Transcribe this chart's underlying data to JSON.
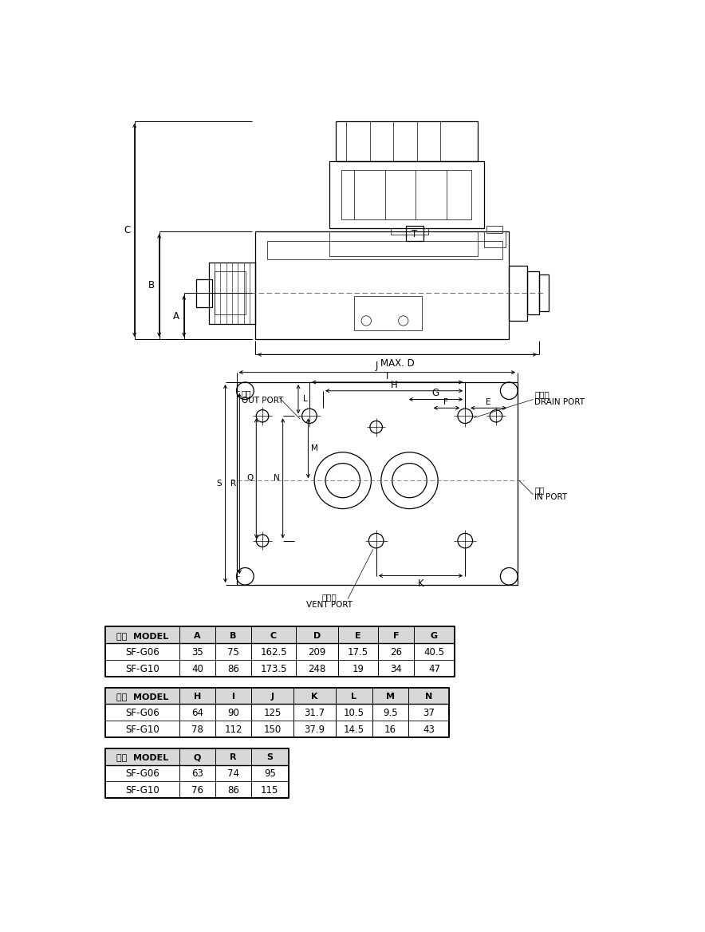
{
  "bg_color": "#ffffff",
  "line_color": "#000000",
  "table_header_bg": "#e0e0e0",
  "table_border": "#000000",
  "table1": {
    "headers": [
      "型式  MODEL",
      "A",
      "B",
      "C",
      "D",
      "E",
      "F",
      "G"
    ],
    "rows": [
      [
        "SF-G06",
        "35",
        "75",
        "162.5",
        "209",
        "17.5",
        "26",
        "40.5"
      ],
      [
        "SF-G10",
        "40",
        "86",
        "173.5",
        "248",
        "19",
        "34",
        "47"
      ]
    ]
  },
  "table2": {
    "headers": [
      "型式  MODEL",
      "H",
      "I",
      "J",
      "K",
      "L",
      "M",
      "N"
    ],
    "rows": [
      [
        "SF-G06",
        "64",
        "90",
        "125",
        "31.7",
        "10.5",
        "9.5",
        "37"
      ],
      [
        "SF-G10",
        "78",
        "112",
        "150",
        "37.9",
        "14.5",
        "16",
        "43"
      ]
    ]
  },
  "table3": {
    "headers": [
      "型式  MODEL",
      "Q",
      "R",
      "S"
    ],
    "rows": [
      [
        "SF-G06",
        "63",
        "74",
        "95"
      ],
      [
        "SF-G10",
        "76",
        "86",
        "115"
      ]
    ]
  }
}
